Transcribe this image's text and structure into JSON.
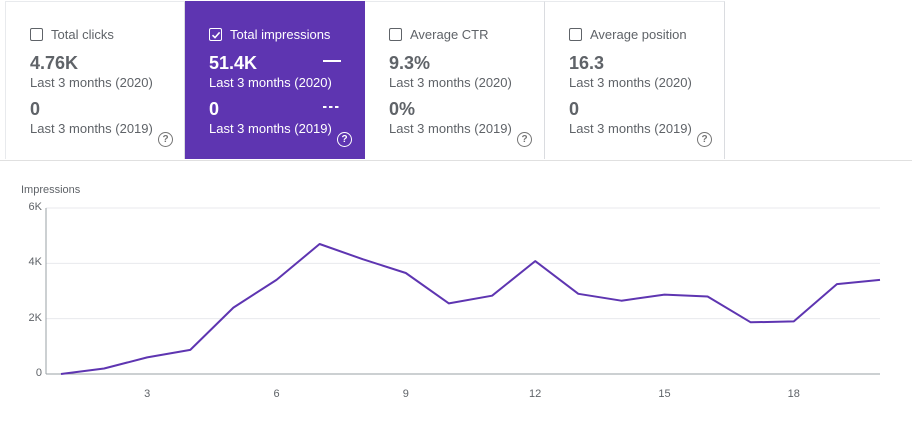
{
  "cards": [
    {
      "label": "Total clicks",
      "checked": false,
      "value_2020": "4.76K",
      "period_2020": "Last 3 months (2020)",
      "value_2019": "0",
      "period_2019": "Last 3 months (2019)"
    },
    {
      "label": "Total impressions",
      "checked": true,
      "value_2020": "51.4K",
      "period_2020": "Last 3 months (2020)",
      "value_2019": "0",
      "period_2019": "Last 3 months (2019)"
    },
    {
      "label": "Average CTR",
      "checked": false,
      "value_2020": "9.3%",
      "period_2020": "Last 3 months (2020)",
      "value_2019": "0%",
      "period_2019": "Last 3 months (2019)"
    },
    {
      "label": "Average position",
      "checked": false,
      "value_2020": "16.3",
      "period_2020": "Last 3 months (2020)",
      "value_2019": "0",
      "period_2019": "Last 3 months (2019)"
    }
  ],
  "help_glyph": "?",
  "colors": {
    "accent": "#5e35b1",
    "line": "#5e35b1"
  },
  "chart_data": {
    "type": "line",
    "title": "Impressions",
    "ylabel": "",
    "xlabel": "",
    "ylim": [
      0,
      6000
    ],
    "xlim": [
      1,
      20
    ],
    "yticks": [
      0,
      2000,
      4000,
      6000
    ],
    "ytick_labels": [
      "0",
      "2K",
      "4K",
      "6K"
    ],
    "xticks": [
      3,
      6,
      9,
      12,
      15,
      18
    ],
    "xtick_labels": [
      "3",
      "6",
      "9",
      "12",
      "15",
      "18"
    ],
    "grid": true,
    "x": [
      1,
      2,
      3,
      4,
      5,
      6,
      7,
      8,
      9,
      10,
      11,
      12,
      13,
      14,
      15,
      16,
      17,
      18,
      19,
      20
    ],
    "series": [
      {
        "values": [
          0,
          200,
          600,
          870,
          2400,
          3400,
          4700,
          4150,
          3650,
          2550,
          2830,
          4080,
          2900,
          2650,
          2870,
          2800,
          1870,
          1900,
          3250,
          3400
        ]
      }
    ]
  }
}
